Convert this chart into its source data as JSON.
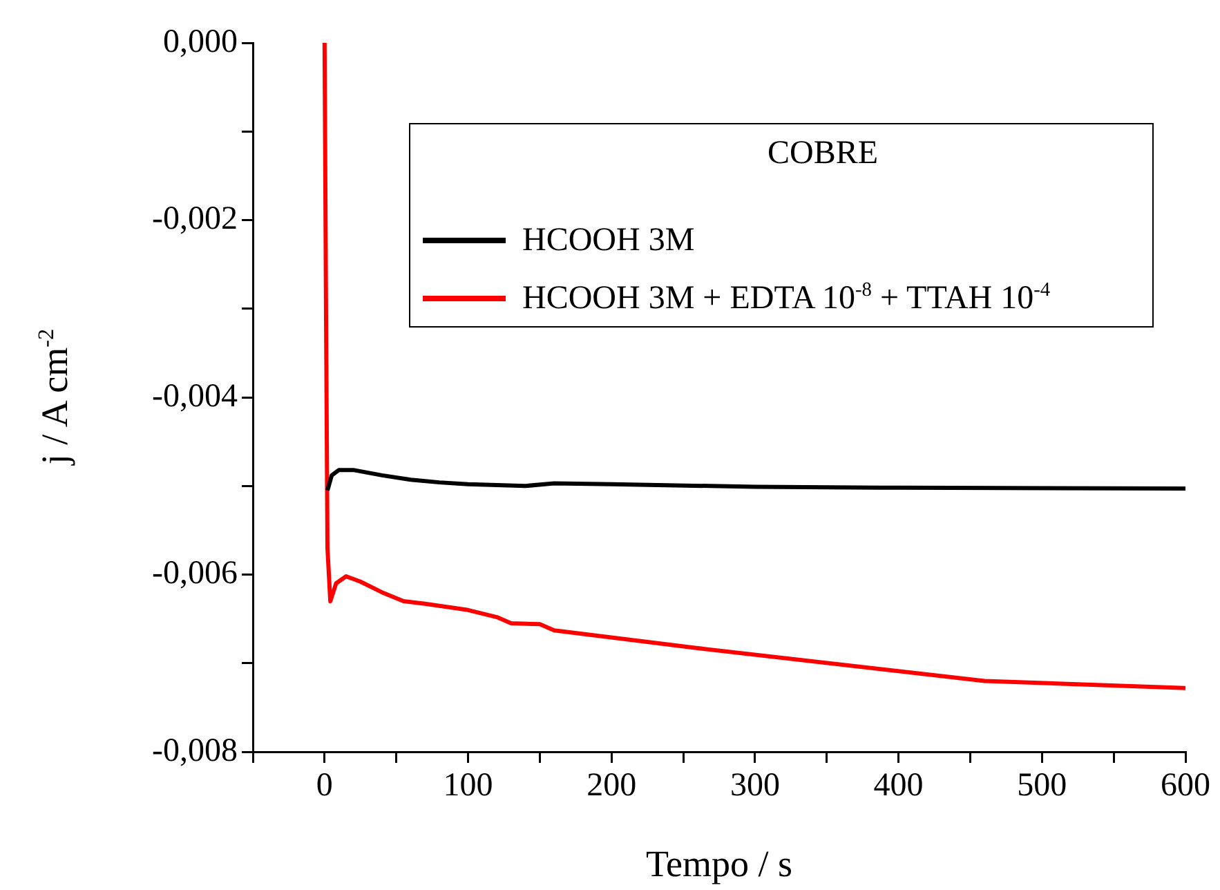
{
  "chart_data": {
    "type": "line",
    "xlabel": "Tempo / s",
    "ylabel": "j / A cm$^{-2}$",
    "legend_title": "COBRE",
    "legend": "top right",
    "grid": false,
    "marker": "none",
    "line_style": "solid",
    "xlim": [
      -50,
      600
    ],
    "xticks": [
      {
        "value": -50,
        "label": null
      },
      0,
      {
        "value": 50,
        "label": null
      },
      100,
      {
        "value": 150,
        "label": null
      },
      200,
      {
        "value": 250,
        "label": null
      },
      300,
      {
        "value": 350,
        "label": null
      },
      400,
      {
        "value": 450,
        "label": null
      },
      500,
      {
        "value": 550,
        "label": null
      },
      600
    ],
    "ylim": [
      -0.008,
      0
    ],
    "yticks": [
      {
        "value": -0.008,
        "label": "-0,008"
      },
      {
        "value": -0.007,
        "label": null
      },
      {
        "value": -0.006,
        "label": "-0,006"
      },
      {
        "value": -0.005,
        "label": null
      },
      {
        "value": -0.004,
        "label": "-0,004"
      },
      {
        "value": -0.003,
        "label": null
      },
      {
        "value": -0.002,
        "label": "-0,002"
      },
      {
        "value": -0.001,
        "label": null
      },
      {
        "value": 0,
        "label": "0,000"
      }
    ],
    "series": [
      {
        "name": "HCOOH 3M",
        "color": "#000000",
        "x": [
          2,
          5,
          10,
          20,
          40,
          60,
          80,
          100,
          140,
          160,
          200,
          300,
          400,
          600
        ],
        "values": [
          -0.00505,
          -0.00488,
          -0.00482,
          -0.00482,
          -0.00488,
          -0.00493,
          -0.00496,
          -0.00498,
          -0.005,
          -0.00497,
          -0.00498,
          -0.00501,
          -0.00502,
          -0.00503
        ]
      },
      {
        "name": "HCOOH 3M + EDTA 10$^{-8}$ + TTAH 10$^{-4}$",
        "color": "#ff0000",
        "x": [
          0,
          1,
          2,
          4,
          8,
          15,
          25,
          40,
          55,
          70,
          100,
          120,
          130,
          150,
          160,
          260,
          460,
          600
        ],
        "values": [
          0,
          -0.003,
          -0.0057,
          -0.0063,
          -0.0061,
          -0.00602,
          -0.00608,
          -0.0062,
          -0.0063,
          -0.00633,
          -0.0064,
          -0.00648,
          -0.00655,
          -0.00656,
          -0.00663,
          -0.00683,
          -0.0072,
          -0.00728
        ]
      }
    ]
  }
}
